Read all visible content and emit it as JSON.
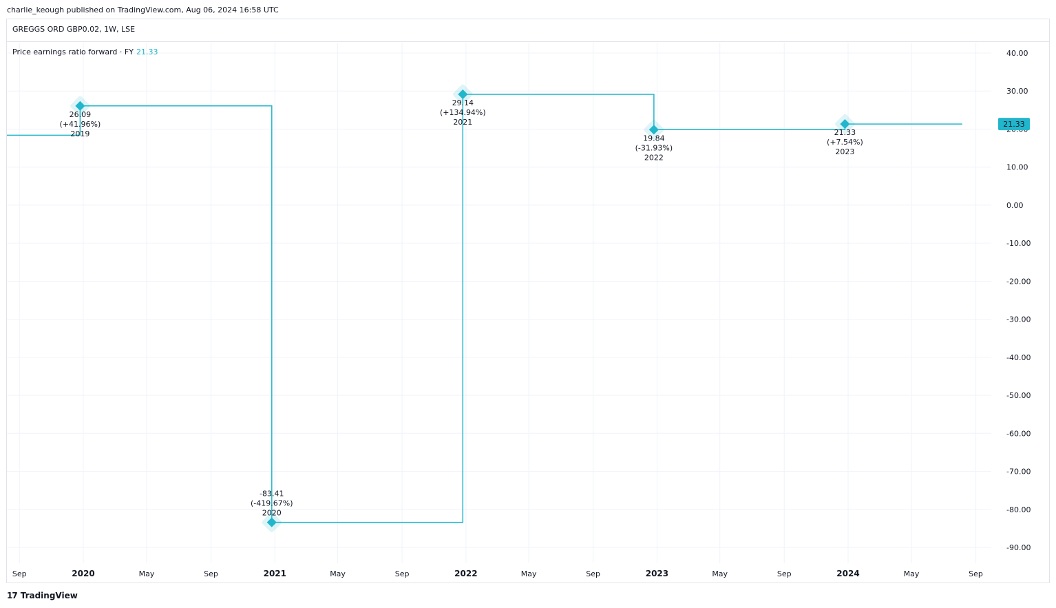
{
  "header": {
    "published": "charlie_keough published on TradingView.com, Aug 06, 2024 16:58 UTC",
    "symbol": "GREGGS ORD GBP0.02, 1W, LSE"
  },
  "legend": {
    "label": "Price earnings ratio forward · FY",
    "value": "21.33"
  },
  "footer": {
    "brand": "TradingView",
    "brand_mark": "17"
  },
  "colors": {
    "series": "#22b6cc",
    "grid": "#f0f3fa",
    "text": "#131722"
  },
  "chart_data": {
    "type": "line",
    "title": "",
    "xlabel": "",
    "ylabel": "",
    "ylim": [
      -93,
      42
    ],
    "y_ticks": [
      "40.00",
      "30.00",
      "20.00",
      "10.00",
      "0.00",
      "-10.00",
      "-20.00",
      "-30.00",
      "-40.00",
      "-50.00",
      "-60.00",
      "-70.00",
      "-80.00",
      "-90.00"
    ],
    "x_ticks": [
      {
        "label": "Sep",
        "date": "2019-09-01",
        "major": false
      },
      {
        "label": "2020",
        "date": "2020-01-01",
        "major": true
      },
      {
        "label": "May",
        "date": "2020-05-01",
        "major": false
      },
      {
        "label": "Sep",
        "date": "2020-09-01",
        "major": false
      },
      {
        "label": "2021",
        "date": "2021-01-01",
        "major": true
      },
      {
        "label": "May",
        "date": "2021-05-01",
        "major": false
      },
      {
        "label": "Sep",
        "date": "2021-09-01",
        "major": false
      },
      {
        "label": "2022",
        "date": "2022-01-01",
        "major": true
      },
      {
        "label": "May",
        "date": "2022-05-01",
        "major": false
      },
      {
        "label": "Sep",
        "date": "2022-09-01",
        "major": false
      },
      {
        "label": "2023",
        "date": "2023-01-01",
        "major": true
      },
      {
        "label": "May",
        "date": "2023-05-01",
        "major": false
      },
      {
        "label": "Sep",
        "date": "2023-09-01",
        "major": false
      },
      {
        "label": "2024",
        "date": "2024-01-01",
        "major": true
      },
      {
        "label": "May",
        "date": "2024-05-01",
        "major": false
      },
      {
        "label": "Sep",
        "date": "2024-09-01",
        "major": false
      }
    ],
    "start": {
      "date": "2019-07-10",
      "value": 18.38
    },
    "end_date": "2024-08-06",
    "points": [
      {
        "date": "2019-12-26",
        "value": 26.09,
        "value_label": "26.09",
        "change": "(+41.96%)",
        "year": "2019"
      },
      {
        "date": "2020-12-26",
        "value": -83.41,
        "value_label": "-83.41",
        "change": "(-419.67%)",
        "year": "2020"
      },
      {
        "date": "2021-12-26",
        "value": 29.14,
        "value_label": "29.14",
        "change": "(+134.94%)",
        "year": "2021"
      },
      {
        "date": "2022-12-26",
        "value": 19.84,
        "value_label": "19.84",
        "change": "(-31.93%)",
        "year": "2022"
      },
      {
        "date": "2023-12-26",
        "value": 21.33,
        "value_label": "21.33",
        "change": "(+7.54%)",
        "year": "2023"
      }
    ],
    "last_value_label": "21.33",
    "grid": true
  }
}
